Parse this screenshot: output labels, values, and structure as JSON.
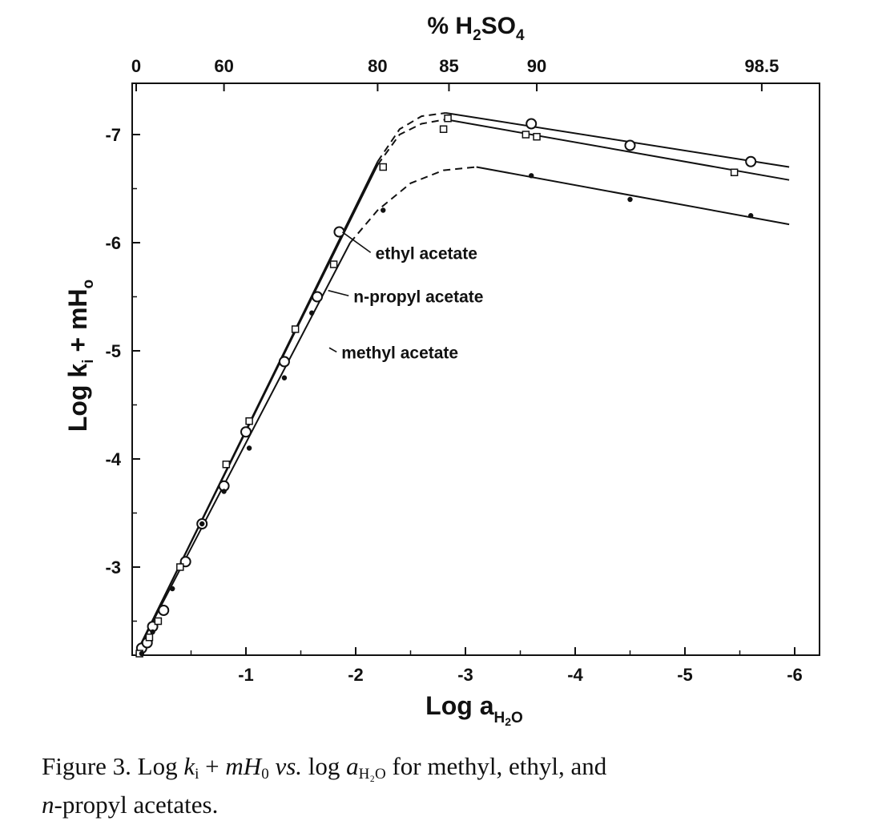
{
  "chart_data": {
    "type": "line",
    "top_axis": {
      "label_main": "% H",
      "label_sub1": "2",
      "label_mid": "SO",
      "label_sub2": "4",
      "ticks": [
        {
          "label": "0",
          "x": 0.0
        },
        {
          "label": "60",
          "x": -0.8
        },
        {
          "label": "80",
          "x": -2.2
        },
        {
          "label": "85",
          "x": -2.85
        },
        {
          "label": "90",
          "x": -3.65
        },
        {
          "label": "98.5",
          "x": -5.7
        }
      ]
    },
    "xaxis": {
      "label_main": "Log a",
      "label_sub": "H",
      "label_sub2": "2",
      "label_sub3": "O",
      "range": [
        0,
        -6.25
      ],
      "ticks": [
        {
          "label": "-1",
          "value": -1
        },
        {
          "label": "-2",
          "value": -2
        },
        {
          "label": "-3",
          "value": -3
        },
        {
          "label": "-4",
          "value": -4
        },
        {
          "label": "-5",
          "value": -5
        },
        {
          "label": "-6",
          "value": -6
        }
      ]
    },
    "yaxis": {
      "label_main": "Log k",
      "label_sub": "i",
      "label_mid": " + mH",
      "label_sub2": "o",
      "range": [
        -2.2,
        -7.4
      ],
      "ticks": [
        {
          "label": "-3",
          "value": -3
        },
        {
          "label": "-4",
          "value": -4
        },
        {
          "label": "-5",
          "value": -5
        },
        {
          "label": "-6",
          "value": -6
        },
        {
          "label": "-7",
          "value": -7
        }
      ]
    },
    "series": [
      {
        "name": "ethyl acetate",
        "marker": "circle-large",
        "points": [
          [
            -0.05,
            -2.25
          ],
          [
            -0.1,
            -2.3
          ],
          [
            -0.15,
            -2.45
          ],
          [
            -0.25,
            -2.6
          ],
          [
            -0.45,
            -3.05
          ],
          [
            -0.6,
            -3.4
          ],
          [
            -0.8,
            -3.75
          ],
          [
            -1.0,
            -4.25
          ],
          [
            -1.35,
            -4.9
          ],
          [
            -1.65,
            -5.5
          ],
          [
            -1.85,
            -6.1
          ],
          [
            -3.6,
            -7.1
          ],
          [
            -4.5,
            -6.9
          ],
          [
            -5.6,
            -6.75
          ]
        ],
        "line": [
          [
            0,
            -2.2
          ],
          [
            -2.2,
            -6.75
          ]
        ],
        "dashed": [
          [
            -2.2,
            -6.75
          ],
          [
            -2.4,
            -7.05
          ],
          [
            -2.6,
            -7.17
          ],
          [
            -2.82,
            -7.2
          ]
        ],
        "line2": [
          [
            -2.82,
            -7.2
          ],
          [
            -5.95,
            -6.7
          ]
        ]
      },
      {
        "name": "n-propyl acetate",
        "marker": "square",
        "points": [
          [
            -0.03,
            -2.2
          ],
          [
            -0.12,
            -2.35
          ],
          [
            -0.2,
            -2.5
          ],
          [
            -0.4,
            -3.0
          ],
          [
            -0.82,
            -3.95
          ],
          [
            -1.03,
            -4.35
          ],
          [
            -1.45,
            -5.2
          ],
          [
            -1.8,
            -5.8
          ],
          [
            -2.25,
            -6.7
          ],
          [
            -2.8,
            -7.05
          ],
          [
            -2.84,
            -7.15
          ],
          [
            -3.55,
            -7.0
          ],
          [
            -3.65,
            -6.98
          ],
          [
            -5.45,
            -6.65
          ]
        ],
        "line": [
          [
            0,
            -2.2
          ],
          [
            -2.2,
            -6.72
          ]
        ],
        "dashed": [
          [
            -2.2,
            -6.72
          ],
          [
            -2.4,
            -7.0
          ],
          [
            -2.6,
            -7.1
          ],
          [
            -2.82,
            -7.14
          ]
        ],
        "line2": [
          [
            -2.82,
            -7.14
          ],
          [
            -5.95,
            -6.58
          ]
        ]
      },
      {
        "name": "methyl acetate",
        "marker": "dot",
        "points": [
          [
            -0.05,
            -2.2
          ],
          [
            -0.15,
            -2.4
          ],
          [
            -0.33,
            -2.8
          ],
          [
            -0.6,
            -3.4
          ],
          [
            -0.8,
            -3.7
          ],
          [
            -1.03,
            -4.1
          ],
          [
            -1.35,
            -4.75
          ],
          [
            -1.6,
            -5.35
          ],
          [
            -2.25,
            -6.3
          ],
          [
            -3.6,
            -6.62
          ],
          [
            -4.5,
            -6.4
          ],
          [
            -5.6,
            -6.25
          ]
        ],
        "line": [
          [
            0,
            -2.2
          ],
          [
            -1.95,
            -6.0
          ]
        ],
        "dashed": [
          [
            -1.95,
            -6.0
          ],
          [
            -2.2,
            -6.3
          ],
          [
            -2.5,
            -6.55
          ],
          [
            -2.8,
            -6.67
          ],
          [
            -3.1,
            -6.7
          ]
        ],
        "line2": [
          [
            -3.1,
            -6.7
          ],
          [
            -5.95,
            -6.17
          ]
        ]
      }
    ],
    "annotations": [
      {
        "text": "ethyl acetate",
        "target": [
          -1.85,
          -6.12
        ],
        "label_at": [
          -2.18,
          -5.85
        ]
      },
      {
        "text": "n-propyl acetate",
        "target": [
          -1.72,
          -5.58
        ],
        "label_at": [
          -1.98,
          -5.45
        ]
      },
      {
        "text": "methyl acetate",
        "target": [
          -1.73,
          -5.05
        ],
        "label_at": [
          -1.87,
          -4.93
        ]
      }
    ]
  },
  "caption": {
    "part1": "Figure 3.  Log ",
    "k": "k",
    "k_sub": "i",
    "part2": " + ",
    "mH": "mH",
    "mH_sub": "0",
    "vs": " vs.",
    "part3": " log ",
    "a": "a",
    "a_sub": "H₂O",
    "part4": " for methyl, ethyl, and",
    "n": "n",
    "part5": "-propyl acetates."
  }
}
